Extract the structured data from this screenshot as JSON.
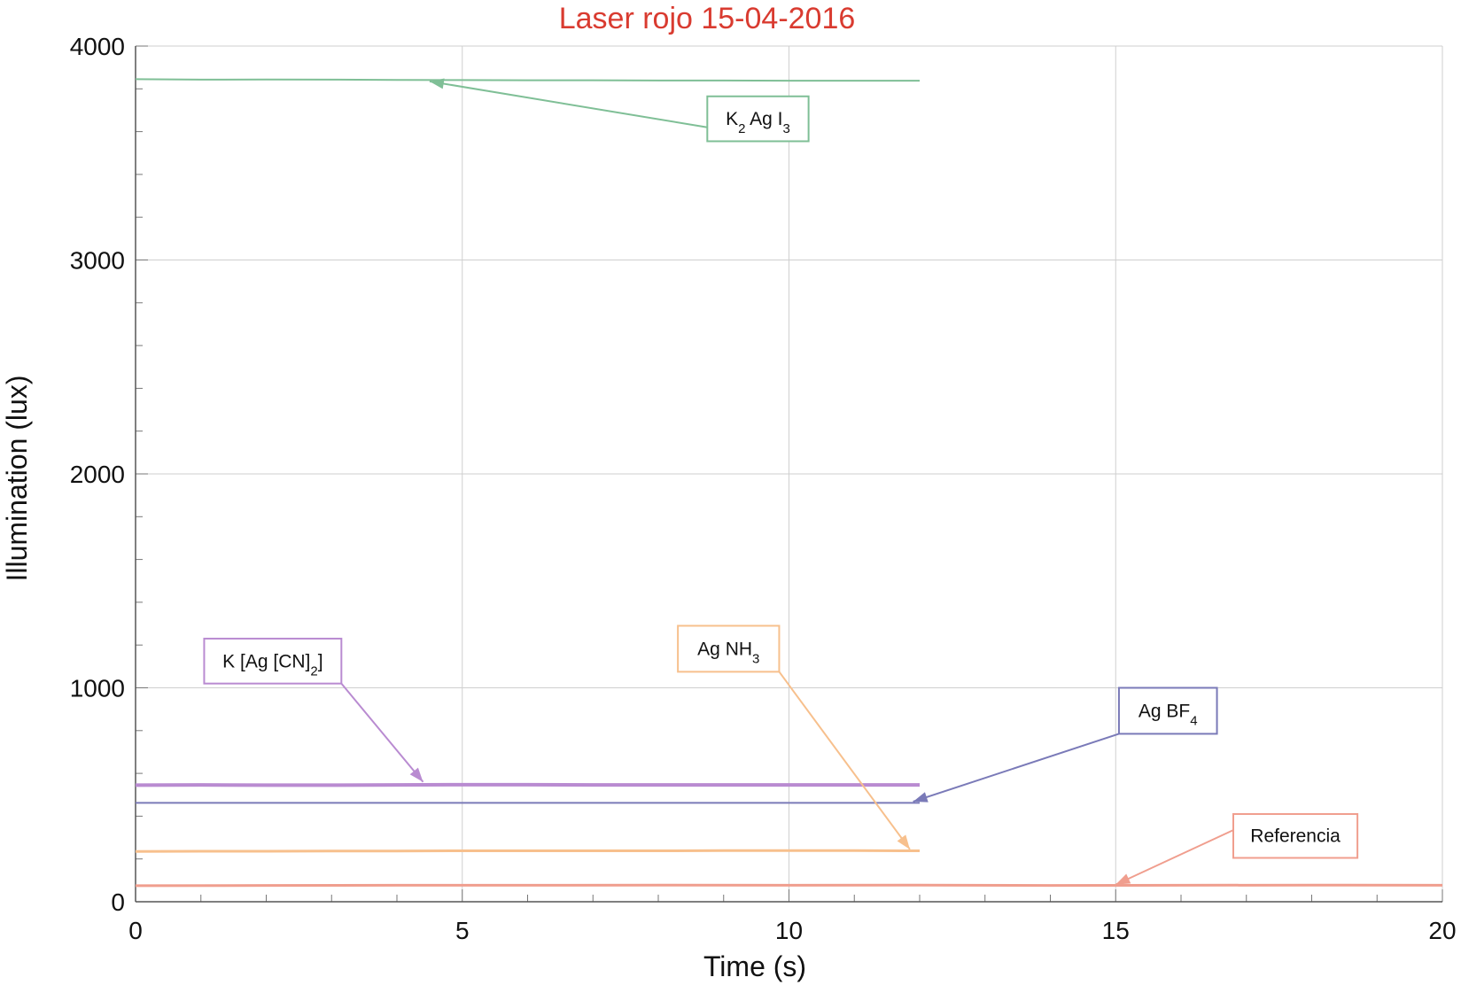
{
  "chart_data": {
    "type": "line",
    "title": "Laser rojo 15-04-2016",
    "title_color": "#d93b30",
    "xlabel": "Time (s)",
    "ylabel": "Illumination (lux)",
    "xlim": [
      0,
      20
    ],
    "ylim": [
      0,
      4000
    ],
    "x_ticks": [
      0,
      5,
      10,
      15,
      20
    ],
    "x_tick_labels": [
      "0",
      "5",
      "10",
      "15",
      "20"
    ],
    "y_ticks": [
      0,
      1000,
      2000,
      3000,
      4000
    ],
    "y_tick_labels": [
      "0",
      "1000",
      "2000",
      "3000",
      "4000"
    ],
    "x_minor_step": 1,
    "y_minor_step": 200,
    "grid": true,
    "series": [
      {
        "key": "k2agi3",
        "x": [
          0,
          1,
          2,
          3,
          4,
          5,
          6,
          7,
          8,
          9,
          10,
          11,
          12
        ],
        "values": [
          3845,
          3843,
          3844,
          3843,
          3842,
          3841,
          3840,
          3840,
          3839,
          3839,
          3838,
          3838,
          3838
        ],
        "color": "#7fbf96",
        "width": 2
      },
      {
        "key": "kagcn2",
        "x": [
          0,
          1,
          2,
          3,
          4,
          5,
          6,
          7,
          8,
          9,
          10,
          11,
          12
        ],
        "values": [
          545,
          546,
          545,
          545,
          546,
          547,
          547,
          546,
          546,
          546,
          546,
          546,
          546
        ],
        "color": "#b98bd1",
        "width": 4
      },
      {
        "key": "agbf4",
        "x": [
          0,
          1,
          2,
          3,
          4,
          5,
          6,
          7,
          8,
          9,
          10,
          11,
          12
        ],
        "values": [
          462,
          462,
          462,
          462,
          462,
          462,
          462,
          462,
          462,
          462,
          462,
          462,
          462
        ],
        "color": "#7a7ab8",
        "width": 2
      },
      {
        "key": "agnh3",
        "x": [
          0,
          1,
          2,
          3,
          4,
          5,
          6,
          7,
          8,
          9,
          10,
          11,
          12
        ],
        "values": [
          235,
          236,
          236,
          237,
          237,
          238,
          238,
          238,
          238,
          239,
          239,
          239,
          238
        ],
        "color": "#f7c08d",
        "width": 3
      },
      {
        "key": "referencia",
        "x": [
          0,
          2,
          4,
          6,
          8,
          10,
          12,
          14,
          16,
          18,
          20
        ],
        "values": [
          75,
          76,
          77,
          77,
          78,
          77,
          78,
          76,
          77,
          78,
          77
        ],
        "color": "#f09e8e",
        "width": 3
      }
    ],
    "annotations": [
      {
        "key": "k2agi3",
        "label_parts": [
          {
            "text": "K"
          },
          {
            "text": "2",
            "sub": true
          },
          {
            "text": " Ag I"
          },
          {
            "text": "3",
            "sub": true
          }
        ],
        "box_color": "#7fbf96",
        "box": {
          "x": 8.75,
          "y": 3555,
          "w": 1.55,
          "h": 210
        },
        "tail": {
          "x": 8.75,
          "y": 3620
        },
        "head": {
          "x": 4.5,
          "y": 3835
        },
        "line_color": "#7fbf96"
      },
      {
        "key": "kagcn2",
        "label_parts": [
          {
            "text": "K [Ag [CN]"
          },
          {
            "text": "2",
            "sub": true
          },
          {
            "text": "]"
          }
        ],
        "box_color": "#b98bd1",
        "box": {
          "x": 1.05,
          "y": 1020,
          "w": 2.1,
          "h": 210
        },
        "tail": {
          "x": 3.15,
          "y": 1020
        },
        "head": {
          "x": 4.4,
          "y": 560
        },
        "line_color": "#b98bd1"
      },
      {
        "key": "agnh3",
        "label_parts": [
          {
            "text": "Ag NH"
          },
          {
            "text": "3",
            "sub": true
          }
        ],
        "box_color": "#f7c08d",
        "box": {
          "x": 8.3,
          "y": 1075,
          "w": 1.55,
          "h": 215
        },
        "tail": {
          "x": 9.85,
          "y": 1075
        },
        "head": {
          "x": 11.85,
          "y": 245
        },
        "line_color": "#f7c08d"
      },
      {
        "key": "agbf4",
        "label_parts": [
          {
            "text": "Ag BF"
          },
          {
            "text": "4",
            "sub": true
          }
        ],
        "box_color": "#7a7ab8",
        "box": {
          "x": 15.05,
          "y": 785,
          "w": 1.5,
          "h": 215
        },
        "tail": {
          "x": 15.05,
          "y": 785
        },
        "head": {
          "x": 11.9,
          "y": 468
        },
        "line_color": "#7a7ab8"
      },
      {
        "key": "referencia",
        "label_parts": [
          {
            "text": "Referencia"
          }
        ],
        "box_color": "#f09e8e",
        "box": {
          "x": 16.8,
          "y": 205,
          "w": 1.9,
          "h": 205
        },
        "tail": {
          "x": 16.8,
          "y": 335
        },
        "head": {
          "x": 15.0,
          "y": 80
        },
        "line_color": "#f09e8e"
      }
    ]
  }
}
